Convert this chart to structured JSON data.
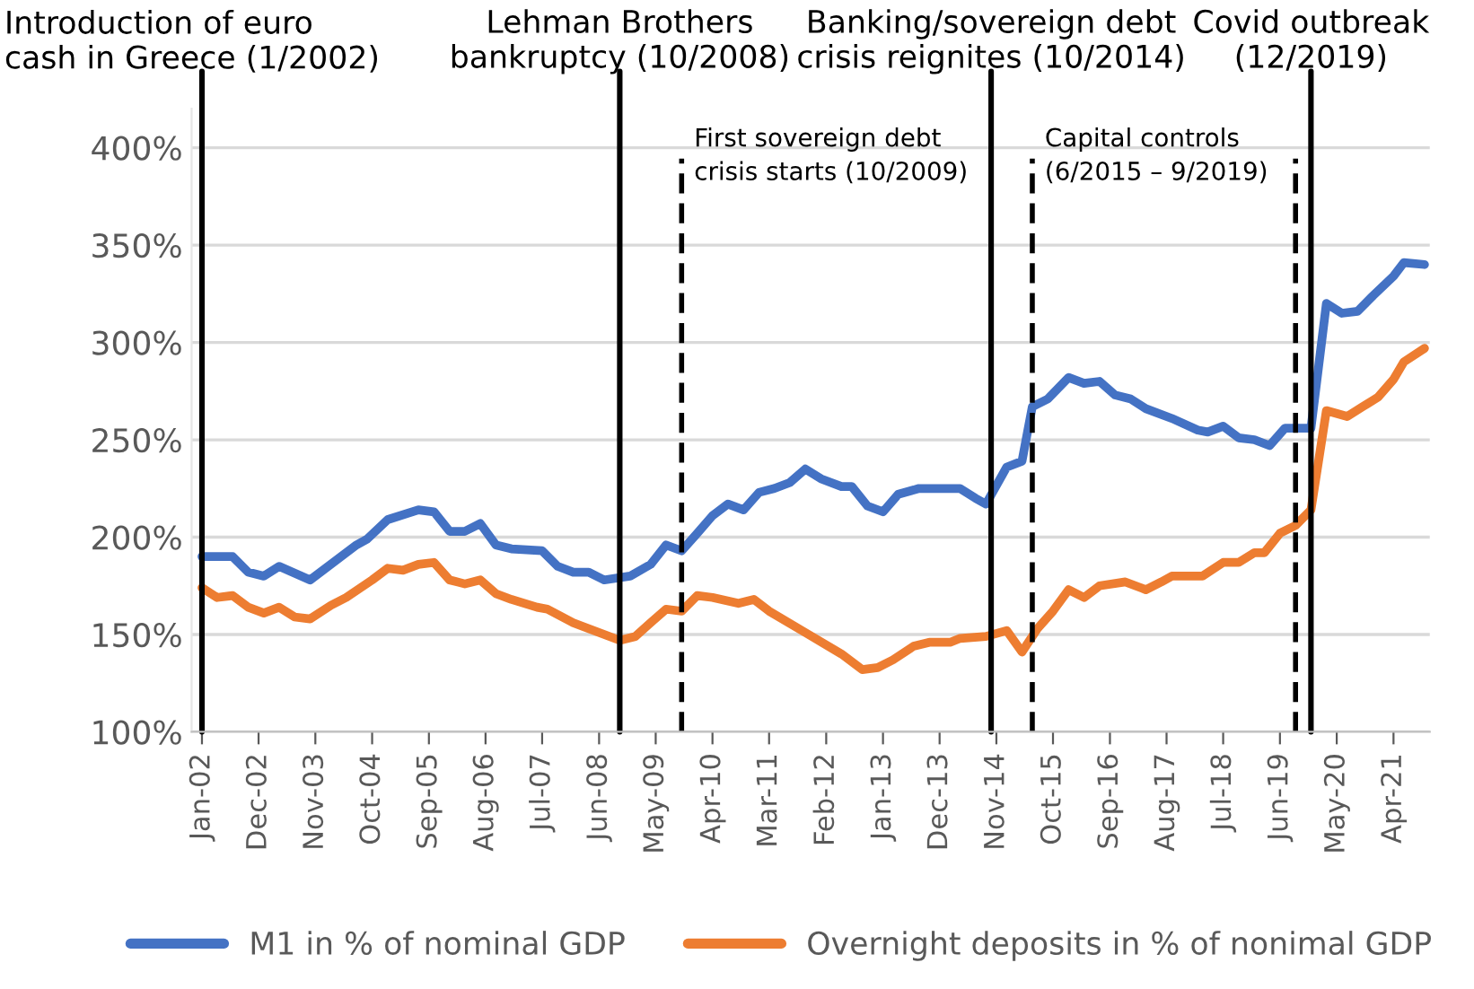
{
  "chart_data": {
    "type": "line",
    "series": [
      {
        "name": "M1 in % of nominal GDP",
        "color": "#4472c4",
        "x": [
          "2002-01",
          "2002-07",
          "2002-10",
          "2003-01",
          "2003-04",
          "2003-10",
          "2004-07",
          "2004-09",
          "2005-01",
          "2005-07",
          "2005-10",
          "2006-01",
          "2006-04",
          "2006-07",
          "2006-10",
          "2007-01",
          "2007-07",
          "2007-10",
          "2008-01",
          "2008-04",
          "2008-07",
          "2008-12",
          "2009-04",
          "2009-07",
          "2009-10",
          "2010-01",
          "2010-04",
          "2010-07",
          "2010-10",
          "2011-01",
          "2011-04",
          "2011-07",
          "2011-10",
          "2012-01",
          "2012-05",
          "2012-07",
          "2012-10",
          "2013-01",
          "2013-04",
          "2013-08",
          "2014-04",
          "2014-07",
          "2014-09",
          "2015-01",
          "2015-04",
          "2015-06",
          "2015-09",
          "2016-01",
          "2016-04",
          "2016-07",
          "2016-10",
          "2017-01",
          "2017-04",
          "2017-09",
          "2018-02",
          "2018-04",
          "2018-07",
          "2018-10",
          "2019-01",
          "2019-04",
          "2019-07",
          "2019-12",
          "2020-03",
          "2020-06",
          "2020-09",
          "2020-12",
          "2021-04",
          "2021-06",
          "2021-10"
        ],
        "values": [
          190,
          190,
          182,
          180,
          185,
          178,
          196,
          199,
          209,
          214,
          213,
          203,
          203,
          207,
          196,
          194,
          193,
          185,
          182,
          182,
          178,
          180,
          186,
          196,
          193,
          202,
          211,
          217,
          214,
          223,
          225,
          228,
          235,
          230,
          226,
          226,
          216,
          213,
          222,
          225,
          225,
          220,
          217,
          236,
          239,
          267,
          271,
          282,
          279,
          280,
          273,
          271,
          266,
          261,
          255,
          254,
          257,
          251,
          250,
          247,
          256,
          256,
          320,
          315,
          316,
          324,
          334,
          341,
          340
        ]
      },
      {
        "name": "Overnight deposits in % of nonimal GDP",
        "color": "#ed7d31",
        "x": [
          "2002-01",
          "2002-04",
          "2002-07",
          "2002-10",
          "2003-01",
          "2003-04",
          "2003-07",
          "2003-10",
          "2004-02",
          "2004-05",
          "2004-10",
          "2005-01",
          "2005-04",
          "2005-07",
          "2005-10",
          "2006-01",
          "2006-04",
          "2006-07",
          "2006-10",
          "2007-01",
          "2007-06",
          "2007-08",
          "2008-01",
          "2008-04",
          "2008-10",
          "2009-01",
          "2009-04",
          "2009-07",
          "2009-10",
          "2010-01",
          "2010-04",
          "2010-09",
          "2010-12",
          "2011-03",
          "2011-10",
          "2012-05",
          "2012-09",
          "2012-12",
          "2013-03",
          "2013-07",
          "2013-10",
          "2014-02",
          "2014-04",
          "2014-09",
          "2015-01",
          "2015-04",
          "2015-07",
          "2015-10",
          "2016-01",
          "2016-04",
          "2016-07",
          "2016-12",
          "2017-04",
          "2017-07",
          "2017-09",
          "2018-03",
          "2018-07",
          "2018-10",
          "2019-01",
          "2019-03",
          "2019-06",
          "2019-09",
          "2019-12",
          "2020-03",
          "2020-07",
          "2020-10",
          "2021-01",
          "2021-04",
          "2021-06",
          "2021-10"
        ],
        "values": [
          174,
          169,
          170,
          164,
          161,
          164,
          159,
          158,
          165,
          169,
          178,
          184,
          183,
          186,
          187,
          178,
          176,
          178,
          171,
          168,
          164,
          163,
          156,
          153,
          147,
          149,
          156,
          163,
          162,
          170,
          169,
          166,
          168,
          162,
          151,
          140,
          132,
          133,
          137,
          144,
          146,
          146,
          148,
          149,
          152,
          141,
          153,
          162,
          173,
          169,
          175,
          177,
          173,
          177,
          180,
          180,
          187,
          187,
          192,
          192,
          202,
          206,
          214,
          265,
          262,
          267,
          272,
          281,
          290,
          297
        ]
      }
    ],
    "xlim": [
      "2001-11",
      "2021-11"
    ],
    "xticks": [
      {
        "value": "2002-01",
        "label": "Jan-02"
      },
      {
        "value": "2002-12",
        "label": "Dec-02"
      },
      {
        "value": "2003-11",
        "label": "Nov-03"
      },
      {
        "value": "2004-10",
        "label": "Oct-04"
      },
      {
        "value": "2005-09",
        "label": "Sep-05"
      },
      {
        "value": "2006-08",
        "label": "Aug-06"
      },
      {
        "value": "2007-07",
        "label": "Jul-07"
      },
      {
        "value": "2008-06",
        "label": "Jun-08"
      },
      {
        "value": "2009-05",
        "label": "May-09"
      },
      {
        "value": "2010-04",
        "label": "Apr-10"
      },
      {
        "value": "2011-03",
        "label": "Mar-11"
      },
      {
        "value": "2012-02",
        "label": "Feb-12"
      },
      {
        "value": "2013-01",
        "label": "Jan-13"
      },
      {
        "value": "2013-12",
        "label": "Dec-13"
      },
      {
        "value": "2014-11",
        "label": "Nov-14"
      },
      {
        "value": "2015-10",
        "label": "Oct-15"
      },
      {
        "value": "2016-09",
        "label": "Sep-16"
      },
      {
        "value": "2017-08",
        "label": "Aug-17"
      },
      {
        "value": "2018-07",
        "label": "Jul-18"
      },
      {
        "value": "2019-06",
        "label": "Jun-19"
      },
      {
        "value": "2020-05",
        "label": "May-20"
      },
      {
        "value": "2021-04",
        "label": "Apr-21"
      }
    ],
    "ylim": [
      100,
      420
    ],
    "yticks": [
      {
        "value": 100,
        "label": "100%"
      },
      {
        "value": 150,
        "label": "150%"
      },
      {
        "value": 200,
        "label": "200%"
      },
      {
        "value": 250,
        "label": "250%"
      },
      {
        "value": 300,
        "label": "300%"
      },
      {
        "value": 350,
        "label": "350%"
      },
      {
        "value": 400,
        "label": "400%"
      }
    ],
    "ref_lines": [
      {
        "axis": "x",
        "value": "2002-01",
        "label": "Introduction of euro\ncash in Greece (1/2002)",
        "line_style": "solid",
        "color": "#000000"
      },
      {
        "axis": "x",
        "value": "2008-10",
        "label": "Lehman Brothers\nbankruptcy (10/2008)",
        "line_style": "solid",
        "color": "#000000"
      },
      {
        "axis": "x",
        "value": "2009-10",
        "label": "First sovereign debt\ncrisis starts (10/2009)",
        "line_style": "dashed",
        "color": "#000000"
      },
      {
        "axis": "x",
        "value": "2014-10",
        "label": "Banking/sovereign debt\ncrisis reignites (10/2014)",
        "line_style": "solid",
        "color": "#000000"
      },
      {
        "axis": "x",
        "value": "2015-06",
        "label": "Capital controls\n(6/2015 – 9/2019)",
        "line_style": "dashed",
        "color": "#000000"
      },
      {
        "axis": "x",
        "value": "2019-09",
        "label": null,
        "line_style": "dashed",
        "color": "#000000"
      },
      {
        "axis": "x",
        "value": "2019-12",
        "label": "Covid outbreak\n(12/2019)",
        "line_style": "solid",
        "color": "#000000"
      }
    ],
    "grid": "y",
    "legend": "bottom",
    "line_style": "solid",
    "marker": "none"
  }
}
